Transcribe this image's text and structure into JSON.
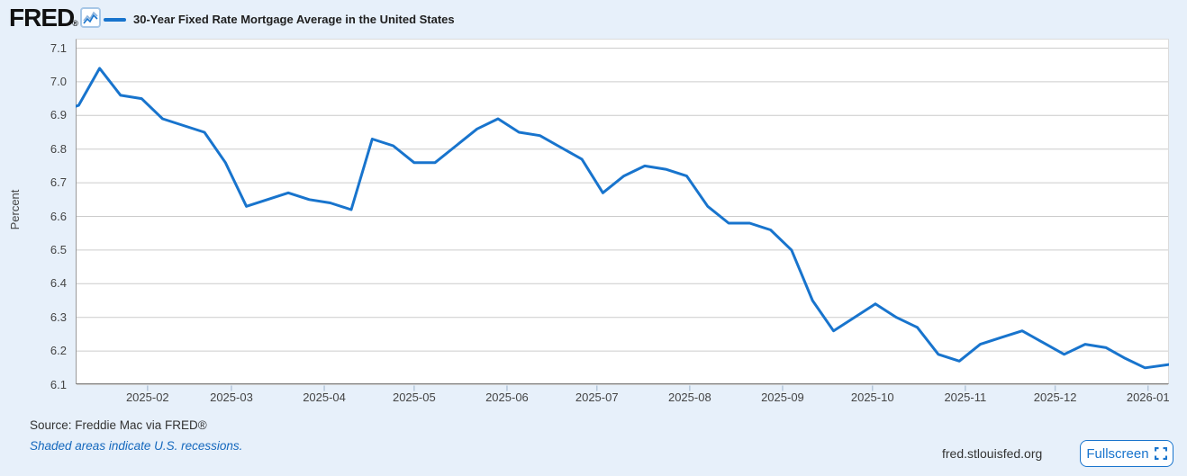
{
  "header": {
    "logo_text": "FRED",
    "logo_registered": "®",
    "series_title": "30-Year Fixed Rate Mortgage Average in the United States"
  },
  "chart_data": {
    "type": "line",
    "title": "30-Year Fixed Rate Mortgage Average in the United States",
    "ylabel": "Percent",
    "ylim": [
      6.1,
      7.1
    ],
    "y_ticks": [
      7.1,
      7.0,
      6.9,
      6.8,
      6.7,
      6.6,
      6.5,
      6.4,
      6.3,
      6.2,
      6.1
    ],
    "x_ticks": [
      "2025-02",
      "2025-03",
      "2025-04",
      "2025-05",
      "2025-06",
      "2025-07",
      "2025-08",
      "2025-09",
      "2025-10",
      "2025-11",
      "2025-12",
      "2026-01"
    ],
    "x_range": [
      "2025-01-08",
      "2026-01-08"
    ],
    "grid": true,
    "legend_position": "top",
    "line_color": "#1874cd",
    "series": [
      {
        "name": "30-Year Fixed Rate Mortgage Average in the United States",
        "dates": [
          "2025-01-02",
          "2025-01-09",
          "2025-01-16",
          "2025-01-23",
          "2025-01-30",
          "2025-02-06",
          "2025-02-13",
          "2025-02-20",
          "2025-02-27",
          "2025-03-06",
          "2025-03-13",
          "2025-03-20",
          "2025-03-27",
          "2025-04-03",
          "2025-04-10",
          "2025-04-17",
          "2025-04-24",
          "2025-05-01",
          "2025-05-08",
          "2025-05-15",
          "2025-05-22",
          "2025-05-29",
          "2025-06-05",
          "2025-06-12",
          "2025-06-18",
          "2025-06-26",
          "2025-07-03",
          "2025-07-10",
          "2025-07-17",
          "2025-07-24",
          "2025-07-31",
          "2025-08-07",
          "2025-08-14",
          "2025-08-21",
          "2025-08-28",
          "2025-09-04",
          "2025-09-11",
          "2025-09-18",
          "2025-09-25",
          "2025-10-02",
          "2025-10-09",
          "2025-10-16",
          "2025-10-23",
          "2025-10-30",
          "2025-11-06",
          "2025-11-13",
          "2025-11-20",
          "2025-11-26",
          "2025-12-04",
          "2025-12-11",
          "2025-12-18",
          "2025-12-24",
          "2025-12-31",
          "2026-01-08"
        ],
        "values": [
          6.91,
          6.93,
          7.04,
          6.96,
          6.95,
          6.89,
          6.87,
          6.85,
          6.76,
          6.63,
          6.65,
          6.67,
          6.65,
          6.64,
          6.62,
          6.83,
          6.81,
          6.76,
          6.76,
          6.81,
          6.86,
          6.89,
          6.85,
          6.84,
          6.81,
          6.77,
          6.67,
          6.72,
          6.75,
          6.74,
          6.72,
          6.63,
          6.58,
          6.58,
          6.56,
          6.5,
          6.35,
          6.26,
          6.3,
          6.34,
          6.3,
          6.27,
          6.19,
          6.17,
          6.22,
          6.24,
          6.26,
          6.23,
          6.19,
          6.22,
          6.21,
          6.18,
          6.15,
          6.16
        ]
      }
    ]
  },
  "footer": {
    "source": "Source: Freddie Mac via FRED®",
    "note": "Shaded areas indicate U.S. recessions.",
    "site": "fred.stlouisfed.org",
    "fullscreen_label": "Fullscreen"
  },
  "colors": {
    "background": "#e7f0fa",
    "plot_background": "#ffffff",
    "gridline": "#cccccc",
    "accent_blue": "#1874cd",
    "link_blue": "#1568bd",
    "axis_text": "#444444"
  }
}
